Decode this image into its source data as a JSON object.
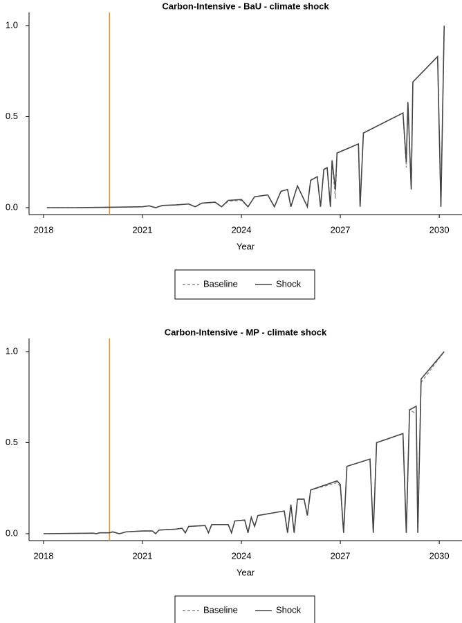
{
  "chart_data": [
    {
      "type": "line",
      "title": "Carbon-Intensive - BaU - climate shock",
      "x_label": "Year",
      "x": [
        2018.1,
        2019,
        2020,
        2021,
        2021.2,
        2021.4,
        2021.6,
        2022,
        2022.4,
        2022.6,
        2022.8,
        2023.2,
        2023.4,
        2023.6,
        2024,
        2024.2,
        2024.4,
        2024.8,
        2025,
        2025.2,
        2025.4,
        2025.5,
        2025.7,
        2026,
        2026.1,
        2026.3,
        2026.4,
        2026.5,
        2026.6,
        2026.7,
        2026.75,
        2026.85,
        2026.9,
        2027.55,
        2027.6,
        2027.7,
        2028.9,
        2029,
        2029.05,
        2029.15,
        2029.2,
        2029.95,
        2030.05,
        2030.15
      ],
      "series": [
        {
          "name": "Baseline",
          "color": "#888888",
          "linestyle": "dashed",
          "values": [
            0,
            0,
            0.002,
            0.005,
            0.01,
            0,
            0.012,
            0.015,
            0.02,
            0.005,
            0.025,
            0.03,
            0.005,
            0.035,
            0.04,
            0.005,
            0.06,
            0.07,
            0.005,
            0.09,
            0.1,
            0.005,
            0.12,
            0.005,
            0.15,
            0.17,
            0.005,
            0.21,
            0.22,
            0.005,
            0.26,
            0.05,
            0.3,
            0.35,
            0.005,
            0.41,
            0.52,
            0.22,
            0.58,
            0.1,
            0.69,
            0.83,
            0.005,
            1.0
          ]
        },
        {
          "name": "Shock",
          "color": "#444444",
          "linestyle": "solid",
          "values": [
            0,
            0,
            0.002,
            0.005,
            0.01,
            0,
            0.012,
            0.015,
            0.02,
            0.005,
            0.025,
            0.03,
            0.005,
            0.04,
            0.045,
            0.005,
            0.06,
            0.07,
            0.005,
            0.09,
            0.1,
            0.005,
            0.12,
            0.005,
            0.15,
            0.17,
            0.005,
            0.21,
            0.22,
            0.005,
            0.26,
            0.1,
            0.3,
            0.35,
            0.005,
            0.41,
            0.52,
            0.25,
            0.58,
            0.1,
            0.69,
            0.83,
            0.005,
            1.0
          ]
        }
      ],
      "xlim": [
        2017.56,
        2030.69
      ],
      "ylim": [
        -0.038,
        1.072
      ],
      "xticks": [
        2018,
        2021,
        2024,
        2027,
        2030
      ],
      "yticks": [
        {
          "value": 0,
          "label": "0.0"
        },
        {
          "value": 0.5,
          "label": "0.5"
        },
        {
          "value": 1,
          "label": "1.0"
        }
      ],
      "vline": 2020,
      "vline_color": "#f28e2b",
      "legend": "bottom"
    },
    {
      "type": "line",
      "title": "Carbon-Intensive - MP - climate shock",
      "x_label": "Year",
      "x": [
        2018,
        2019.5,
        2019.6,
        2019.7,
        2020,
        2020.1,
        2020.3,
        2020.5,
        2021,
        2021.3,
        2021.4,
        2021.5,
        2022,
        2022.2,
        2022.3,
        2022.4,
        2022.9,
        2023,
        2023.1,
        2023.6,
        2023.7,
        2023.8,
        2024.1,
        2024.2,
        2024.3,
        2024.4,
        2024.5,
        2025.3,
        2025.4,
        2025.5,
        2025.6,
        2025.7,
        2025.9,
        2026,
        2026.1,
        2026.9,
        2027,
        2027.1,
        2027.2,
        2027.9,
        2028,
        2028.1,
        2028.9,
        2029,
        2029.1,
        2029.3,
        2029.35,
        2029.45,
        2030.15
      ],
      "series": [
        {
          "name": "Baseline",
          "color": "#888888",
          "linestyle": "dashed",
          "values": [
            0,
            0.003,
            0,
            0.005,
            0.005,
            0.01,
            0,
            0.01,
            0.015,
            0.015,
            0,
            0.02,
            0.025,
            0.03,
            0.005,
            0.04,
            0.045,
            0.005,
            0.05,
            0.05,
            0.005,
            0.07,
            0.075,
            0.005,
            0.09,
            0.04,
            0.1,
            0.125,
            0.005,
            0.16,
            0.005,
            0.19,
            0.19,
            0.1,
            0.24,
            0.28,
            0.26,
            0.005,
            0.37,
            0.41,
            0.005,
            0.5,
            0.55,
            0.005,
            0.68,
            0.66,
            0,
            0.83,
            1.0
          ]
        },
        {
          "name": "Shock",
          "color": "#444444",
          "linestyle": "solid",
          "values": [
            0,
            0.003,
            0,
            0.005,
            0.005,
            0.01,
            0,
            0.01,
            0.015,
            0.015,
            0,
            0.02,
            0.025,
            0.03,
            0.005,
            0.04,
            0.045,
            0.005,
            0.05,
            0.05,
            0.005,
            0.07,
            0.075,
            0.005,
            0.09,
            0.04,
            0.1,
            0.125,
            0.005,
            0.16,
            0.005,
            0.19,
            0.19,
            0.1,
            0.24,
            0.29,
            0.27,
            0.005,
            0.37,
            0.41,
            0.005,
            0.5,
            0.55,
            0.005,
            0.68,
            0.7,
            0.005,
            0.85,
            1.0
          ]
        }
      ],
      "xlim": [
        2017.56,
        2030.69
      ],
      "ylim": [
        -0.038,
        1.072
      ],
      "xticks": [
        2018,
        2021,
        2024,
        2027,
        2030
      ],
      "yticks": [
        {
          "value": 0,
          "label": "0.0"
        },
        {
          "value": 0.5,
          "label": "0.5"
        },
        {
          "value": 1,
          "label": "1.0"
        }
      ],
      "vline": 2020,
      "vline_color": "#f28e2b",
      "legend": "bottom"
    }
  ]
}
